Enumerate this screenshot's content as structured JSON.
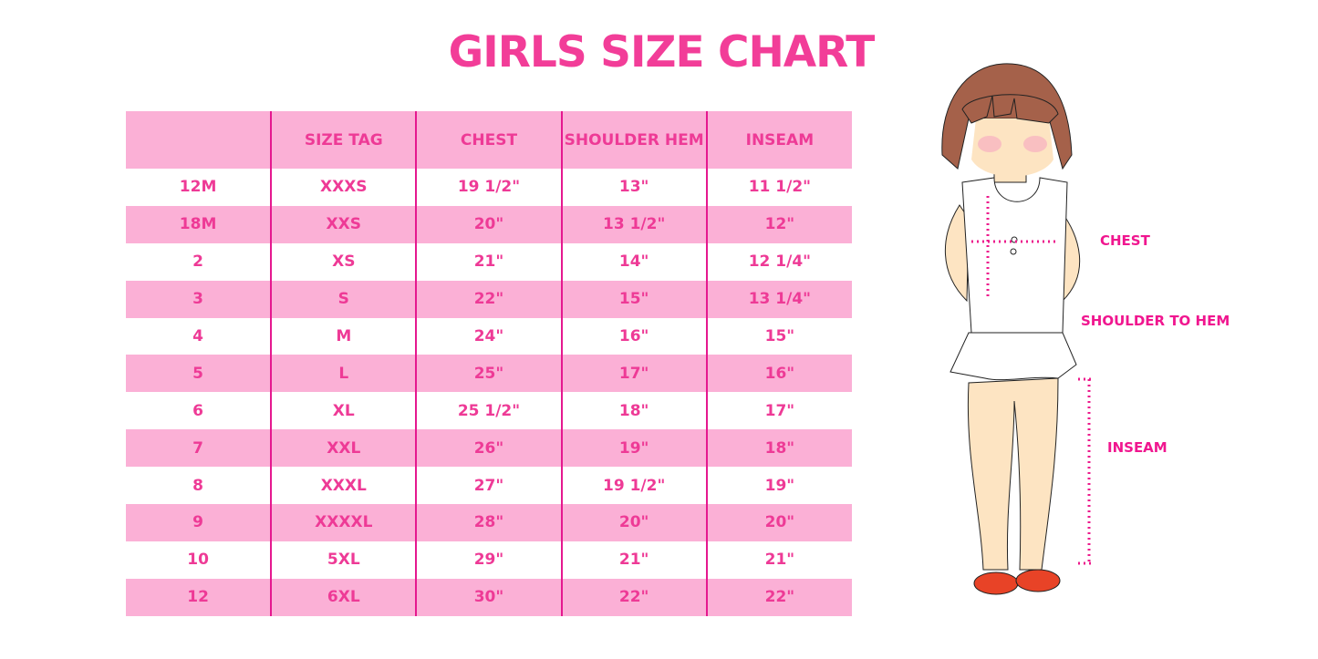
{
  "title": "GIRLS SIZE CHART",
  "table": {
    "headers": [
      "",
      "SIZE TAG",
      "CHEST",
      "SHOULDER HEM",
      "INSEAM"
    ],
    "rows": [
      [
        "12M",
        "XXXS",
        "19 1/2\"",
        "13\"",
        "11 1/2\""
      ],
      [
        "18M",
        "XXS",
        "20\"",
        "13 1/2\"",
        "12\""
      ],
      [
        "2",
        "XS",
        "21\"",
        "14\"",
        "12 1/4\""
      ],
      [
        "3",
        "S",
        "22\"",
        "15\"",
        "13 1/4\""
      ],
      [
        "4",
        "M",
        "24\"",
        "16\"",
        "15\""
      ],
      [
        "5",
        "L",
        "25\"",
        "17\"",
        "16\""
      ],
      [
        "6",
        "XL",
        "25 1/2\"",
        "18\"",
        "17\""
      ],
      [
        "7",
        "XXL",
        "26\"",
        "19\"",
        "18\""
      ],
      [
        "8",
        "XXXL",
        "27\"",
        "19 1/2\"",
        "19\""
      ],
      [
        "9",
        "XXXXL",
        "28\"",
        "20\"",
        "20\""
      ],
      [
        "10",
        "5XL",
        "29\"",
        "21\"",
        "21\""
      ],
      [
        "12",
        "6XL",
        "30\"",
        "22\"",
        "22\""
      ]
    ]
  },
  "illustration": {
    "labels": {
      "chest": "CHEST",
      "shoulder_to_hem": "SHOULDER TO HEM",
      "inseam": "INSEAM"
    }
  },
  "colors": {
    "accent": "#f23d98",
    "row_pink": "#fbb0d6",
    "divider": "#e5188f"
  }
}
